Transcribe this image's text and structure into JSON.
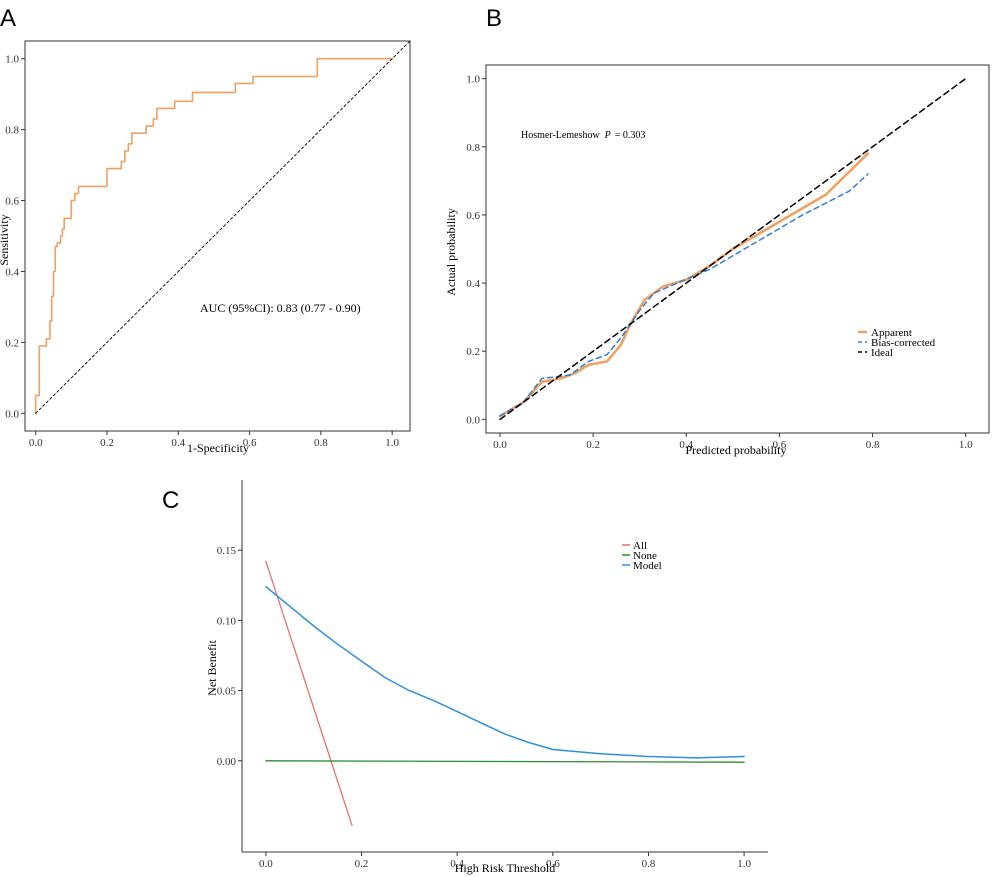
{
  "panel_letters": {
    "a": "A",
    "b": "B",
    "c": "C"
  },
  "colors": {
    "roc": "#F0A060",
    "apparent": "#F0A060",
    "bias": "#2E7FD8",
    "ideal": "#000000",
    "all": "#E8706C",
    "none": "#2E8B2E",
    "model": "#2E8FE0"
  },
  "chart_data": [
    {
      "id": "A",
      "type": "line",
      "title": "",
      "xlabel": "1-Specificity",
      "ylabel": "Sensitivity",
      "xlim": [
        -0.03,
        1.05
      ],
      "ylim": [
        -0.05,
        1.05
      ],
      "xticks": [
        "0.0",
        "0.2",
        "0.4",
        "0.6",
        "0.8",
        "1.0"
      ],
      "yticks": [
        "0.0",
        "0.2",
        "0.4",
        "0.6",
        "0.8",
        "1.0"
      ],
      "annotation": "AUC (95%CI): 0.83 (0.77 - 0.90)",
      "series": [
        {
          "name": "ROC",
          "step": true,
          "points": [
            [
              0,
              0
            ],
            [
              0,
              0.05
            ],
            [
              0.01,
              0.05
            ],
            [
              0.01,
              0.19
            ],
            [
              0.03,
              0.19
            ],
            [
              0.03,
              0.21
            ],
            [
              0.04,
              0.21
            ],
            [
              0.04,
              0.26
            ],
            [
              0.045,
              0.26
            ],
            [
              0.045,
              0.33
            ],
            [
              0.05,
              0.33
            ],
            [
              0.05,
              0.4
            ],
            [
              0.055,
              0.4
            ],
            [
              0.055,
              0.47
            ],
            [
              0.06,
              0.47
            ],
            [
              0.06,
              0.48
            ],
            [
              0.07,
              0.48
            ],
            [
              0.07,
              0.5
            ],
            [
              0.075,
              0.5
            ],
            [
              0.075,
              0.52
            ],
            [
              0.08,
              0.52
            ],
            [
              0.08,
              0.55
            ],
            [
              0.1,
              0.55
            ],
            [
              0.1,
              0.6
            ],
            [
              0.11,
              0.6
            ],
            [
              0.11,
              0.62
            ],
            [
              0.12,
              0.62
            ],
            [
              0.12,
              0.64
            ],
            [
              0.2,
              0.64
            ],
            [
              0.2,
              0.69
            ],
            [
              0.24,
              0.69
            ],
            [
              0.24,
              0.71
            ],
            [
              0.25,
              0.71
            ],
            [
              0.25,
              0.74
            ],
            [
              0.26,
              0.74
            ],
            [
              0.26,
              0.76
            ],
            [
              0.27,
              0.76
            ],
            [
              0.27,
              0.79
            ],
            [
              0.31,
              0.79
            ],
            [
              0.31,
              0.81
            ],
            [
              0.33,
              0.81
            ],
            [
              0.33,
              0.83
            ],
            [
              0.34,
              0.83
            ],
            [
              0.34,
              0.86
            ],
            [
              0.39,
              0.86
            ],
            [
              0.39,
              0.88
            ],
            [
              0.44,
              0.88
            ],
            [
              0.44,
              0.905
            ],
            [
              0.56,
              0.905
            ],
            [
              0.56,
              0.93
            ],
            [
              0.61,
              0.93
            ],
            [
              0.61,
              0.95
            ],
            [
              0.79,
              0.95
            ],
            [
              0.79,
              1.0
            ],
            [
              1.0,
              1.0
            ]
          ]
        },
        {
          "name": "Reference",
          "dashed": true,
          "points": [
            [
              0,
              0
            ],
            [
              1.05,
              1.05
            ]
          ]
        }
      ]
    },
    {
      "id": "B",
      "type": "line",
      "title": "",
      "xlabel": "Predicted probability",
      "ylabel": "Actual probability",
      "xlim": [
        -0.03,
        1.05
      ],
      "ylim": [
        -0.04,
        1.04
      ],
      "xticks": [
        "0.0",
        "0.2",
        "0.4",
        "0.6",
        "0.8",
        "1.0"
      ],
      "yticks": [
        "0.0",
        "0.2",
        "0.4",
        "0.6",
        "0.8",
        "1.0"
      ],
      "annotation_prefix": "Hosmer-Lemeshow",
      "annotation_p": "P",
      "annotation_value": "= 0.303",
      "legend": [
        "Apparent",
        "Bias-corrected",
        "Ideal"
      ],
      "legend_position": "right",
      "series": [
        {
          "name": "Apparent",
          "points": [
            [
              0,
              0.01
            ],
            [
              0.05,
              0.05
            ],
            [
              0.09,
              0.11
            ],
            [
              0.13,
              0.12
            ],
            [
              0.16,
              0.135
            ],
            [
              0.19,
              0.16
            ],
            [
              0.23,
              0.17
            ],
            [
              0.26,
              0.22
            ],
            [
              0.28,
              0.28
            ],
            [
              0.31,
              0.35
            ],
            [
              0.35,
              0.39
            ],
            [
              0.4,
              0.41
            ],
            [
              0.45,
              0.45
            ],
            [
              0.5,
              0.5
            ],
            [
              0.6,
              0.58
            ],
            [
              0.7,
              0.66
            ],
            [
              0.79,
              0.78
            ]
          ]
        },
        {
          "name": "Bias-corrected",
          "dashed": true,
          "points": [
            [
              0,
              0.01
            ],
            [
              0.05,
              0.05
            ],
            [
              0.09,
              0.12
            ],
            [
              0.15,
              0.13
            ],
            [
              0.19,
              0.17
            ],
            [
              0.23,
              0.19
            ],
            [
              0.26,
              0.24
            ],
            [
              0.3,
              0.32
            ],
            [
              0.33,
              0.37
            ],
            [
              0.38,
              0.4
            ],
            [
              0.45,
              0.44
            ],
            [
              0.55,
              0.52
            ],
            [
              0.65,
              0.6
            ],
            [
              0.75,
              0.67
            ],
            [
              0.79,
              0.72
            ]
          ]
        },
        {
          "name": "Ideal",
          "dashed": true,
          "points": [
            [
              0,
              0
            ],
            [
              1.0,
              1.0
            ]
          ]
        }
      ]
    },
    {
      "id": "C",
      "type": "line",
      "title": "",
      "xlabel": "High Risk Threshold",
      "ylabel": "Net Benefit",
      "xlim": [
        -0.05,
        1.05
      ],
      "ylim": [
        -0.065,
        0.2
      ],
      "xticks": [
        "0.0",
        "0.2",
        "0.4",
        "0.6",
        "0.8",
        "1.0"
      ],
      "yticks": [
        "0.00",
        "0.05",
        "0.10",
        "0.15"
      ],
      "legend": [
        "All",
        "None",
        "Model"
      ],
      "legend_position": "top-right",
      "series": [
        {
          "name": "All",
          "points": [
            [
              0,
              0.142
            ],
            [
              0.18,
              -0.046
            ]
          ]
        },
        {
          "name": "None",
          "points": [
            [
              0,
              0
            ],
            [
              1.0,
              -0.001
            ]
          ]
        },
        {
          "name": "Model",
          "points": [
            [
              0,
              0.124
            ],
            [
              0.05,
              0.11
            ],
            [
              0.1,
              0.096
            ],
            [
              0.15,
              0.083
            ],
            [
              0.2,
              0.071
            ],
            [
              0.25,
              0.059
            ],
            [
              0.3,
              0.05
            ],
            [
              0.35,
              0.043
            ],
            [
              0.4,
              0.035
            ],
            [
              0.45,
              0.027
            ],
            [
              0.5,
              0.019
            ],
            [
              0.55,
              0.013
            ],
            [
              0.6,
              0.008
            ],
            [
              0.7,
              0.005
            ],
            [
              0.8,
              0.003
            ],
            [
              0.9,
              0.002
            ],
            [
              1.0,
              0.003
            ]
          ]
        }
      ]
    }
  ]
}
